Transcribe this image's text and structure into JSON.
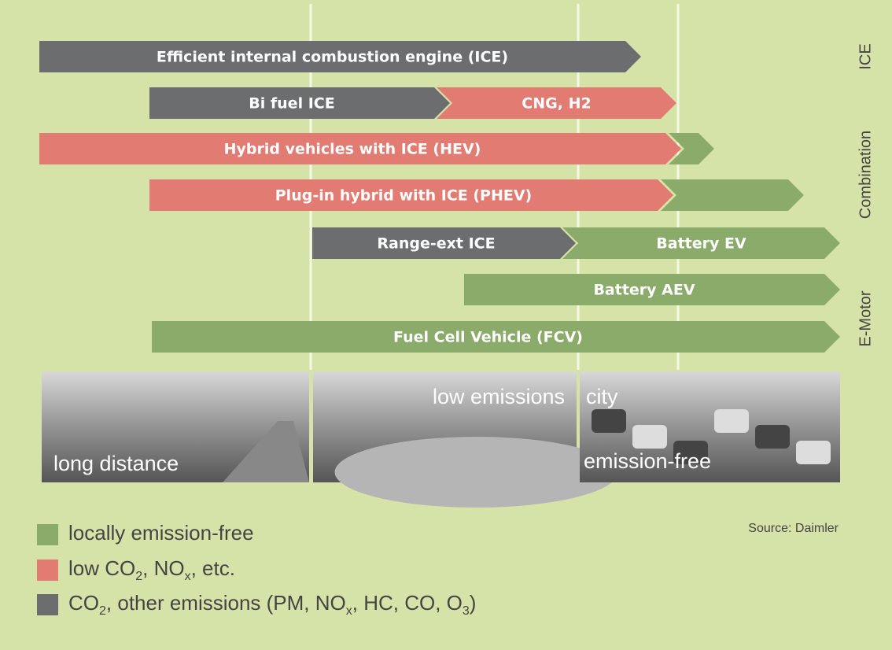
{
  "arrows": [
    {
      "segments": [
        {
          "label": "Efficient internal combustion engine (ICE)",
          "color": "#6c6d6f"
        }
      ]
    },
    {
      "segments": [
        {
          "label": "Bi fuel ICE",
          "color": "#6c6d6f"
        },
        {
          "label": "CNG, H2",
          "color": "#e27b72"
        }
      ]
    },
    {
      "segments": [
        {
          "label": "Hybrid vehicles with ICE (HEV)",
          "color": "#e27b72"
        },
        {
          "color": "#8aab6a"
        }
      ]
    },
    {
      "segments": [
        {
          "label": "Plug-in hybrid with ICE (PHEV)",
          "color": "#e27b72"
        },
        {
          "color": "#8aab6a"
        }
      ]
    },
    {
      "segments": [
        {
          "label": "Range-ext ICE",
          "color": "#6c6d6f"
        },
        {
          "label": "Battery EV",
          "color": "#8aab6a"
        }
      ]
    },
    {
      "segments": [
        {
          "label": "Battery AEV",
          "color": "#8aab6a"
        }
      ]
    },
    {
      "segments": [
        {
          "label": "Fuel Cell Vehicle (FCV)",
          "color": "#8aab6a"
        }
      ]
    }
  ],
  "side_labels": [
    "ICE",
    "Combination",
    "E-Motor"
  ],
  "photos": [
    {
      "captions": [
        "long distance"
      ]
    },
    {
      "captions": [
        "low emissions"
      ]
    },
    {
      "captions": [
        "city",
        "emission-free"
      ]
    }
  ],
  "source": "Source: Daimler",
  "legend": [
    {
      "color": "#8aab6a",
      "parts": [
        {
          "text": "locally emission-free"
        }
      ]
    },
    {
      "color": "#e27b72",
      "parts": [
        {
          "text": "low CO"
        },
        {
          "text": "2",
          "sub": true
        },
        {
          "text": ", NO"
        },
        {
          "text": "x",
          "sub": true
        },
        {
          "text": ", etc."
        }
      ]
    },
    {
      "color": "#6c6d6f",
      "parts": [
        {
          "text": "CO"
        },
        {
          "text": "2",
          "sub": true
        },
        {
          "text": ", other emissions (PM, NO"
        },
        {
          "text": "x",
          "sub": true
        },
        {
          "text": ", HC, CO, O"
        },
        {
          "text": "3",
          "sub": true
        },
        {
          "text": ")"
        }
      ]
    }
  ]
}
